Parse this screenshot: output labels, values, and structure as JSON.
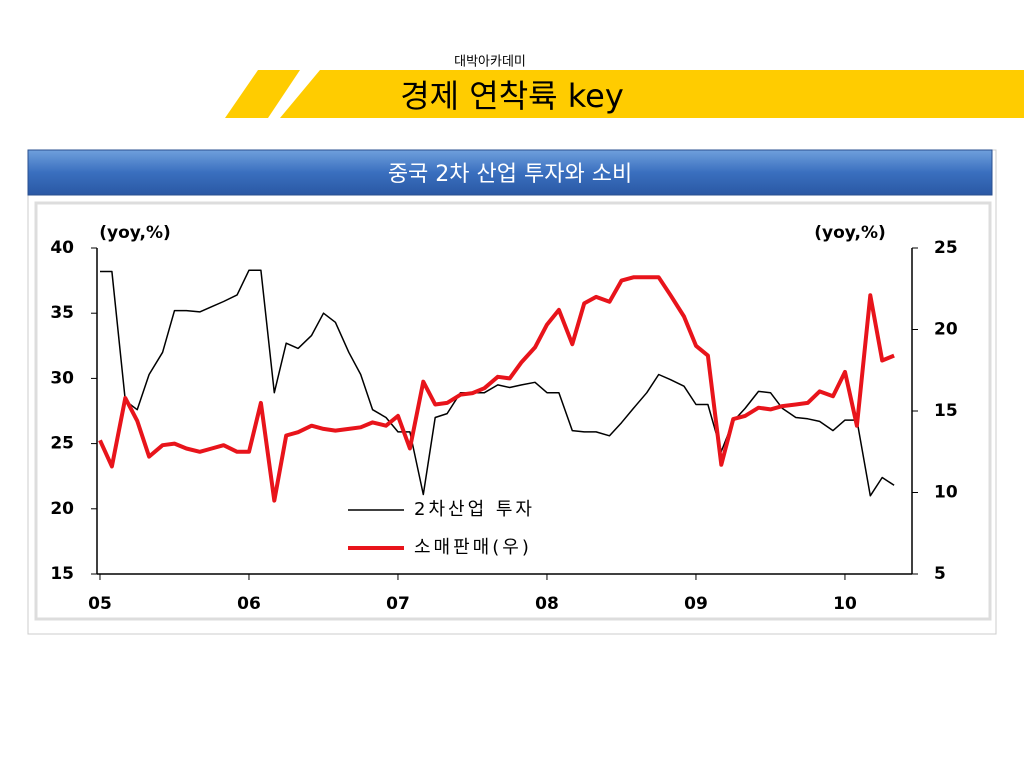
{
  "header": {
    "brand": "대박아카데미",
    "title": "경제 연착륙 key"
  },
  "chart_data": {
    "type": "line",
    "title": "중국 2차 산업 투자와 소비",
    "ylabel": "(yoy,%)",
    "y2label": "(yoy,%)",
    "x": [
      2005,
      2005.08,
      2005.17,
      2005.25,
      2005.33,
      2005.42,
      2005.5,
      2005.58,
      2005.67,
      2005.75,
      2005.83,
      2005.92,
      2006,
      2006.08,
      2006.17,
      2006.25,
      2006.33,
      2006.42,
      2006.5,
      2006.58,
      2006.67,
      2006.75,
      2006.83,
      2006.92,
      2007,
      2007.08,
      2007.17,
      2007.25,
      2007.33,
      2007.42,
      2007.5,
      2007.58,
      2007.67,
      2007.75,
      2007.83,
      2007.92,
      2008,
      2008.08,
      2008.17,
      2008.25,
      2008.33,
      2008.42,
      2008.5,
      2008.58,
      2008.67,
      2008.75,
      2008.83,
      2008.92,
      2009,
      2009.08,
      2009.17,
      2009.25,
      2009.33,
      2009.42,
      2009.5,
      2009.58,
      2009.67,
      2009.75,
      2009.83,
      2009.92,
      2010,
      2010.08,
      2010.17,
      2010.25,
      2010.33
    ],
    "series": [
      {
        "name": "2차산업 투자",
        "color": "#000000",
        "axis": "y",
        "width": 1.5,
        "values": [
          38.2,
          38.2,
          28.3,
          27.6,
          30.3,
          32,
          35.2,
          35.2,
          35.1,
          35.5,
          35.9,
          36.4,
          38.3,
          38.3,
          28.9,
          32.7,
          32.3,
          33.3,
          35,
          34.3,
          32,
          30.3,
          27.6,
          27,
          25.9,
          25.9,
          21.1,
          27,
          27.3,
          28.9,
          28.9,
          28.9,
          29.5,
          29.3,
          29.5,
          29.7,
          28.9,
          28.9,
          26,
          25.9,
          25.9,
          25.6,
          26.6,
          27.7,
          28.9,
          30.3,
          29.9,
          29.4,
          28,
          28,
          24.4,
          26.7,
          27.7,
          29,
          28.9,
          27.7,
          27,
          26.9,
          26.7,
          26,
          26.8,
          26.8,
          21,
          22.4,
          21.8
        ]
      },
      {
        "name": "소매판매(우)",
        "color": "#e8141b",
        "axis": "y2",
        "width": 4,
        "values": [
          13.2,
          11.6,
          15.8,
          14.4,
          12.2,
          12.9,
          13,
          12.7,
          12.5,
          12.7,
          12.9,
          12.5,
          12.5,
          15.5,
          9.5,
          13.5,
          13.7,
          14.1,
          13.9,
          13.8,
          13.9,
          14,
          14.3,
          14.1,
          14.7,
          12.7,
          16.8,
          15.4,
          15.5,
          16,
          16.1,
          16.4,
          17.1,
          17,
          18,
          18.9,
          20.3,
          21.2,
          19.1,
          21.6,
          22,
          21.7,
          23,
          23.2,
          23.2,
          23.2,
          22.1,
          20.8,
          19,
          18.4,
          11.7,
          14.5,
          14.7,
          15.2,
          15.1,
          15.3,
          15.4,
          15.5,
          16.2,
          15.9,
          17.4,
          14.1,
          22.1,
          18.1,
          18.4
        ]
      }
    ],
    "xlim": [
      2004.98,
      2010.45
    ],
    "xticks": [
      {
        "value": 2005,
        "label": "05"
      },
      {
        "value": 2006,
        "label": "06"
      },
      {
        "value": 2007,
        "label": "07"
      },
      {
        "value": 2008,
        "label": "08"
      },
      {
        "value": 2009,
        "label": "09"
      },
      {
        "value": 2010,
        "label": "10"
      }
    ],
    "ylim": [
      15,
      40
    ],
    "yticks": [
      15,
      20,
      25,
      30,
      35,
      40
    ],
    "y2lim": [
      5,
      25
    ],
    "y2ticks": [
      5,
      10,
      15,
      20,
      25
    ],
    "grid": false
  }
}
